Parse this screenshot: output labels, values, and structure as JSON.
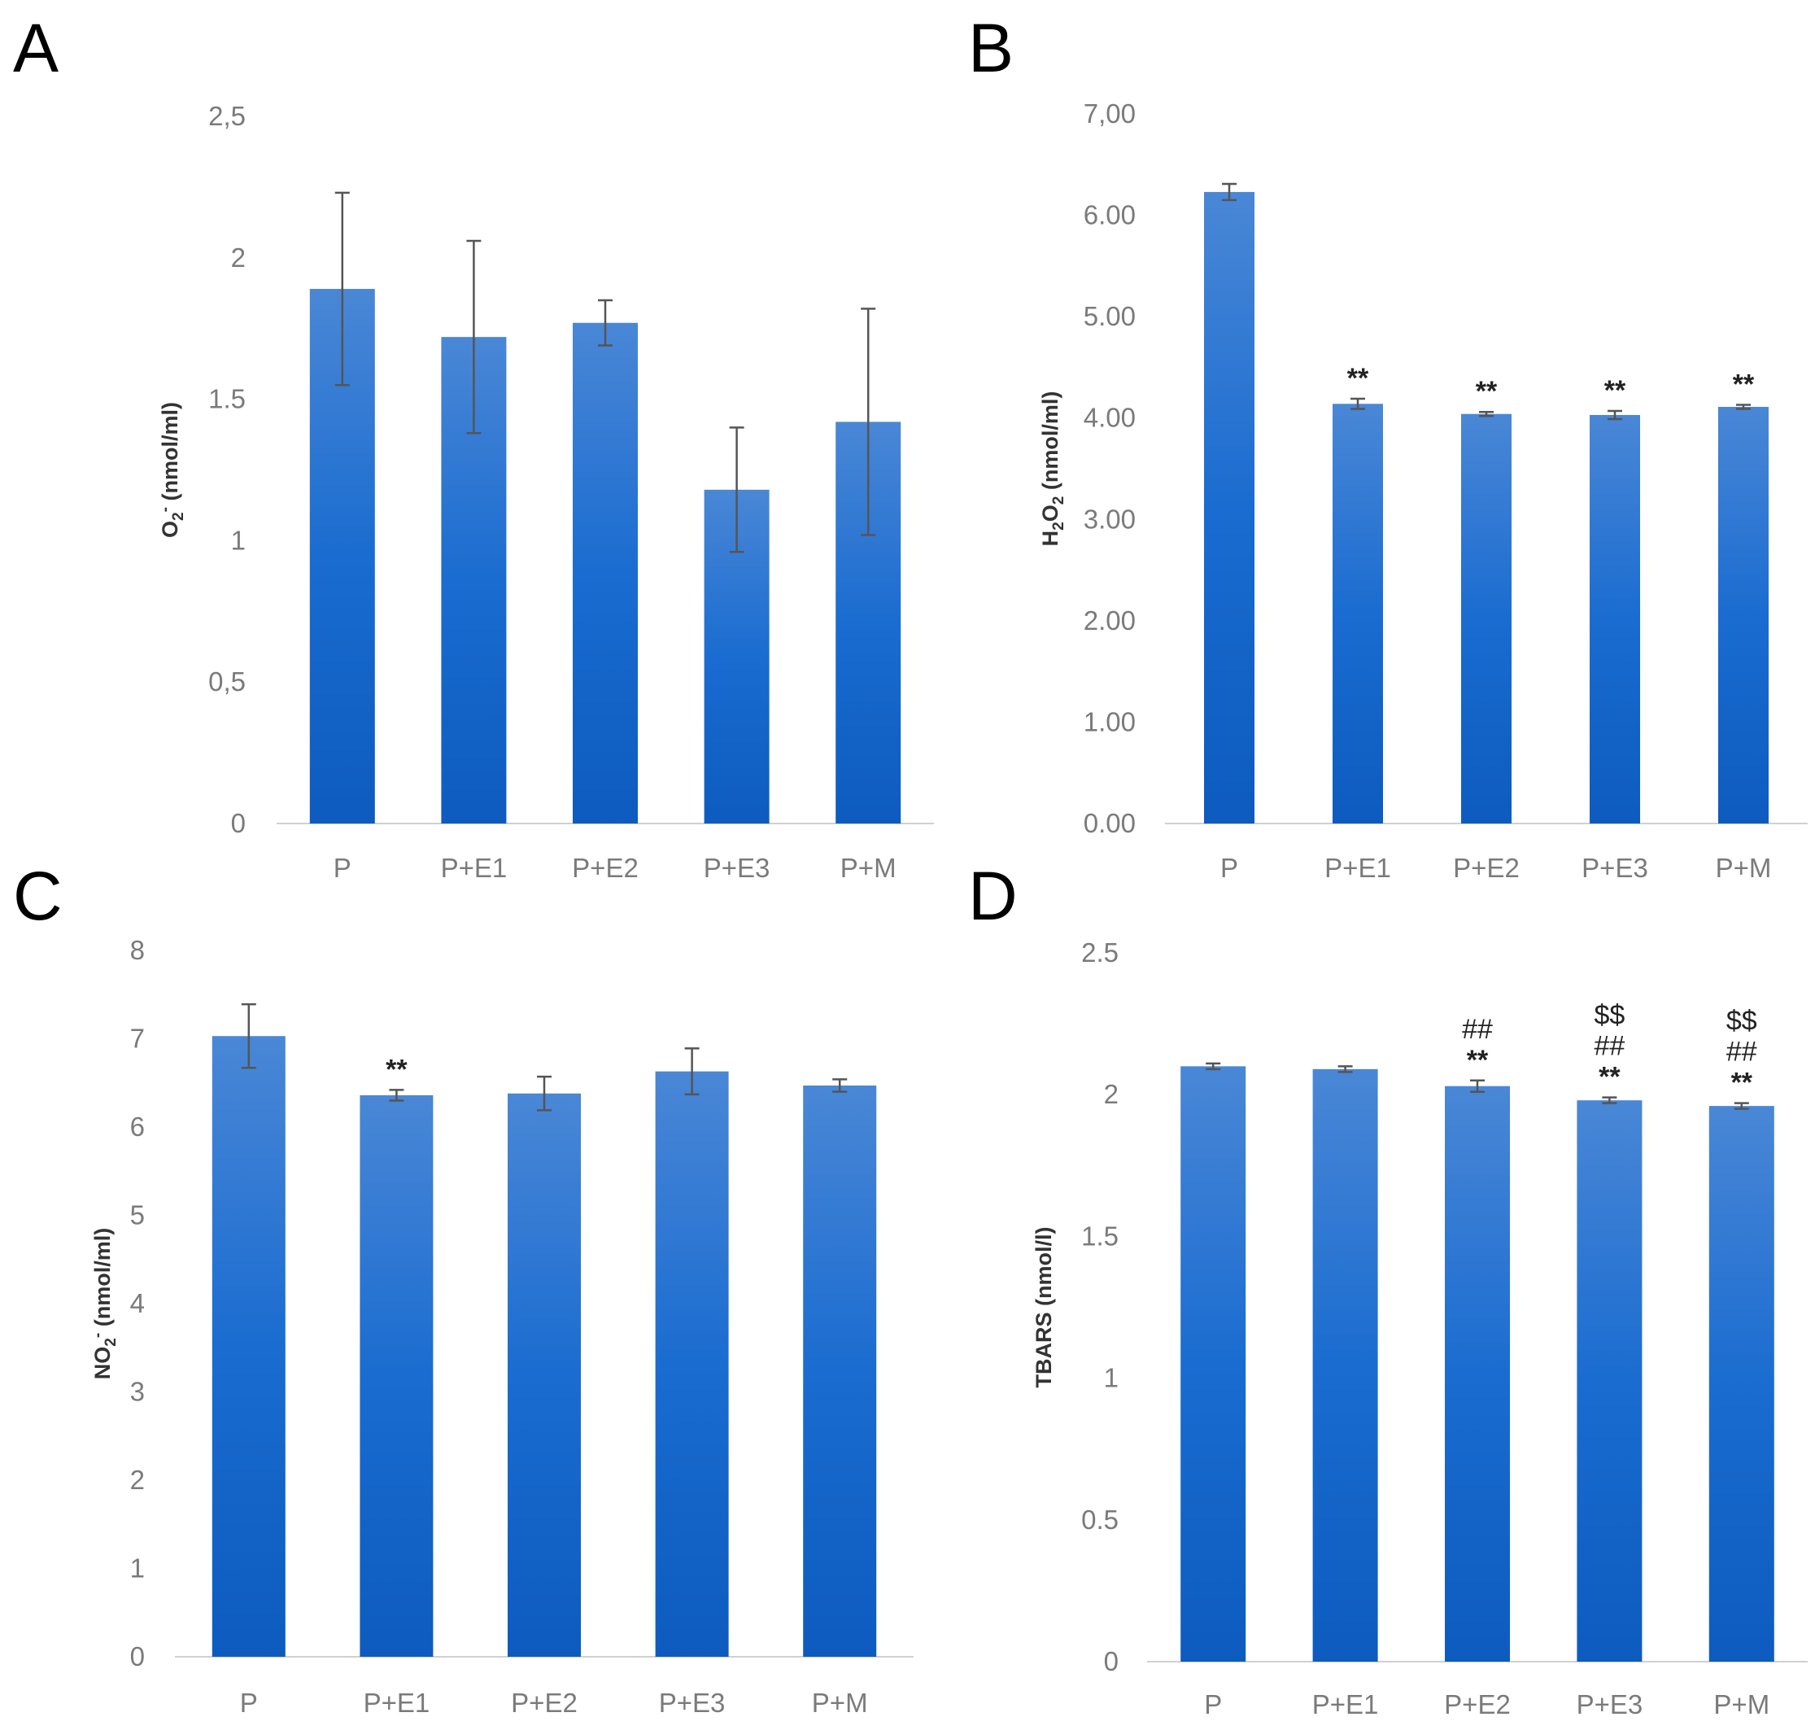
{
  "chart_data": [
    {
      "type": "bar",
      "panel": "A",
      "ylabel_main": "O",
      "ylabel_sub": "2",
      "ylabel_sup": "-",
      "ylabel_rest": " (nmol/ml)",
      "categories": [
        "P",
        "P+E1",
        "P+E2",
        "P+E3",
        "P+M"
      ],
      "values": [
        1.89,
        1.72,
        1.77,
        1.18,
        1.42
      ],
      "errors": [
        0.34,
        0.34,
        0.08,
        0.22,
        0.4
      ],
      "yticks": [
        "0",
        "0,5",
        "1",
        "1.5",
        "2",
        "2,5"
      ],
      "ylim": [
        0,
        2.5
      ],
      "annotations": [
        [],
        [],
        [],
        [],
        []
      ],
      "bar_color": "#1565c8",
      "grid": false
    },
    {
      "type": "bar",
      "panel": "B",
      "ylabel_main": "H",
      "ylabel_sub": "2",
      "ylabel_mid": "O",
      "ylabel_sub2": "2",
      "ylabel_rest": " (nmol/ml)",
      "categories": [
        "P",
        "P+E1",
        "P+E2",
        "P+E3",
        "P+M"
      ],
      "values": [
        6.23,
        4.14,
        4.04,
        4.03,
        4.11
      ],
      "errors": [
        0.08,
        0.05,
        0.02,
        0.04,
        0.02
      ],
      "yticks": [
        "0.00",
        "1.00",
        "2.00",
        "3.00",
        "4.00",
        "5.00",
        "6.00",
        "7,00"
      ],
      "ylim": [
        0,
        7
      ],
      "annotations": [
        [],
        [
          "**"
        ],
        [
          "**"
        ],
        [
          "**"
        ],
        [
          "**"
        ]
      ],
      "bar_color": "#1565c8",
      "grid": false
    },
    {
      "type": "bar",
      "panel": "C",
      "ylabel_main": "NO",
      "ylabel_sub": "2",
      "ylabel_sup": "-",
      "ylabel_rest": " (nmol/ml)",
      "categories": [
        "P",
        "P+E1",
        "P+E2",
        "P+E3",
        "P+M"
      ],
      "values": [
        7.03,
        6.36,
        6.38,
        6.63,
        6.47
      ],
      "errors": [
        0.36,
        0.06,
        0.19,
        0.26,
        0.07
      ],
      "yticks": [
        "0",
        "1",
        "2",
        "3",
        "4",
        "5",
        "6",
        "7",
        "8"
      ],
      "ylim": [
        0,
        8
      ],
      "annotations": [
        [],
        [
          "**"
        ],
        [],
        [],
        []
      ],
      "bar_color": "#1565c8",
      "grid": false
    },
    {
      "type": "bar",
      "panel": "D",
      "ylabel_main": "TBARS (nmol/l)",
      "categories": [
        "P",
        "P+E1",
        "P+E2",
        "P+E3",
        "P+M"
      ],
      "values": [
        2.1,
        2.09,
        2.03,
        1.98,
        1.96
      ],
      "errors": [
        0.01,
        0.01,
        0.02,
        0.01,
        0.01
      ],
      "yticks": [
        "0",
        "0.5",
        "1",
        "1.5",
        "2",
        "2.5"
      ],
      "ylim": [
        0,
        2.5
      ],
      "annotations": [
        [],
        [],
        [
          "**",
          "##"
        ],
        [
          "**",
          "##",
          "$$"
        ],
        [
          "**",
          "##",
          "$$"
        ]
      ],
      "bar_color": "#1565c8",
      "grid": false
    }
  ]
}
